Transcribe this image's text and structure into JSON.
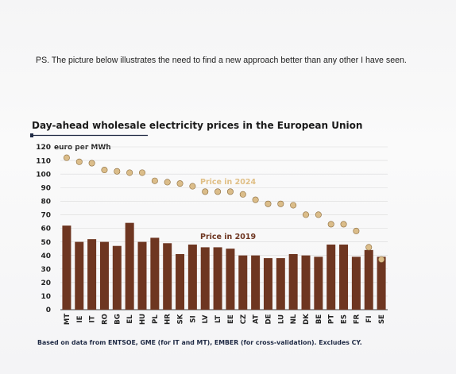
{
  "ps_text": "PS. The picture below illustrates the need to find a new approach better than any other I have seen.",
  "colors": {
    "bar": "#6e3621",
    "dot_fill": "#dbbd8a",
    "dot_stroke": "#8a6a3a",
    "title_rule": "#1f2a44",
    "grid": "#d9d9d9"
  },
  "chart_data": {
    "type": "bar",
    "title": "Day-ahead wholesale electricity prices in the European Union",
    "ylabel": "euro per MWh",
    "ylim": [
      0,
      120
    ],
    "yticks": [
      0,
      10,
      20,
      30,
      40,
      50,
      60,
      70,
      80,
      90,
      100,
      110,
      120
    ],
    "categories": [
      "MT",
      "IE",
      "IT",
      "RO",
      "BG",
      "EL",
      "HU",
      "PL",
      "HR",
      "SK",
      "SI",
      "LV",
      "LT",
      "EE",
      "CZ",
      "AT",
      "DE",
      "LU",
      "NL",
      "DK",
      "BE",
      "PT",
      "ES",
      "FR",
      "FI",
      "SE"
    ],
    "series": [
      {
        "name": "Price in 2019",
        "kind": "bar",
        "values": [
          62,
          50,
          52,
          50,
          47,
          64,
          50,
          53,
          49,
          41,
          48,
          46,
          46,
          45,
          40,
          40,
          38,
          38,
          41,
          40,
          39,
          48,
          48,
          39,
          44,
          39
        ]
      },
      {
        "name": "Price in 2024",
        "kind": "dot",
        "values": [
          112,
          109,
          108,
          103,
          102,
          101,
          101,
          95,
          94,
          93,
          91,
          87,
          87,
          87,
          85,
          81,
          78,
          78,
          77,
          70,
          70,
          63,
          63,
          58,
          46,
          37
        ]
      }
    ],
    "source": "Based on data from ENTSOE, GME (for IT and MT), EMBER (for cross-validation). Excludes CY."
  }
}
